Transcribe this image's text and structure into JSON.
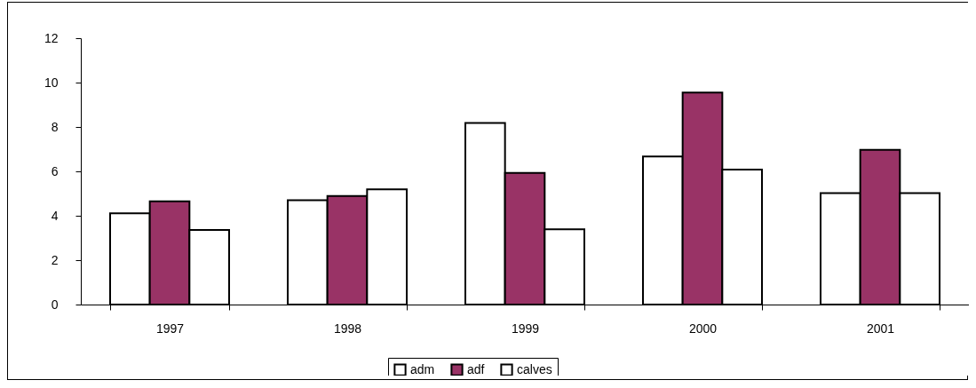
{
  "chart_data": {
    "type": "bar",
    "categories": [
      "1997",
      "1998",
      "1999",
      "2000",
      "2001"
    ],
    "series": [
      {
        "name": "adm",
        "color": "#ffffff",
        "values": [
          4.11,
          4.7,
          8.18,
          6.67,
          5.02
        ]
      },
      {
        "name": "adf",
        "color": "#993366",
        "values": [
          4.65,
          4.89,
          5.93,
          9.55,
          6.97
        ]
      },
      {
        "name": "calves",
        "color": "#ffffff",
        "values": [
          3.36,
          5.19,
          3.39,
          6.08,
          5.02
        ]
      }
    ],
    "ylim": [
      0,
      12
    ],
    "yticks": [
      0,
      2,
      4,
      6,
      8,
      10,
      12
    ],
    "grid": false,
    "legend": "bottom"
  }
}
